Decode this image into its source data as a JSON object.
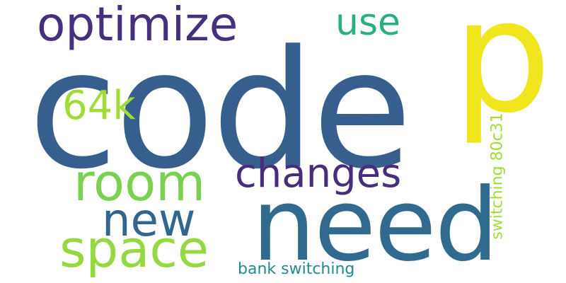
{
  "words": [
    {
      "text": "code",
      "color": "#365f8e"
    },
    {
      "text": "p",
      "color": "#f1e51d"
    },
    {
      "text": "need",
      "color": "#306a8e"
    },
    {
      "text": "optimize",
      "color": "#46307e"
    },
    {
      "text": "use",
      "color": "#2ab07f"
    },
    {
      "text": "64k",
      "color": "#a2da37"
    },
    {
      "text": "changes",
      "color": "#472d7b"
    },
    {
      "text": "room",
      "color": "#7ad151"
    },
    {
      "text": "new",
      "color": "#31668e"
    },
    {
      "text": "space",
      "color": "#95d840"
    },
    {
      "text": "bank switching",
      "color": "#238a8d"
    },
    {
      "text": "switching 80c31",
      "color": "#a5db36"
    }
  ]
}
